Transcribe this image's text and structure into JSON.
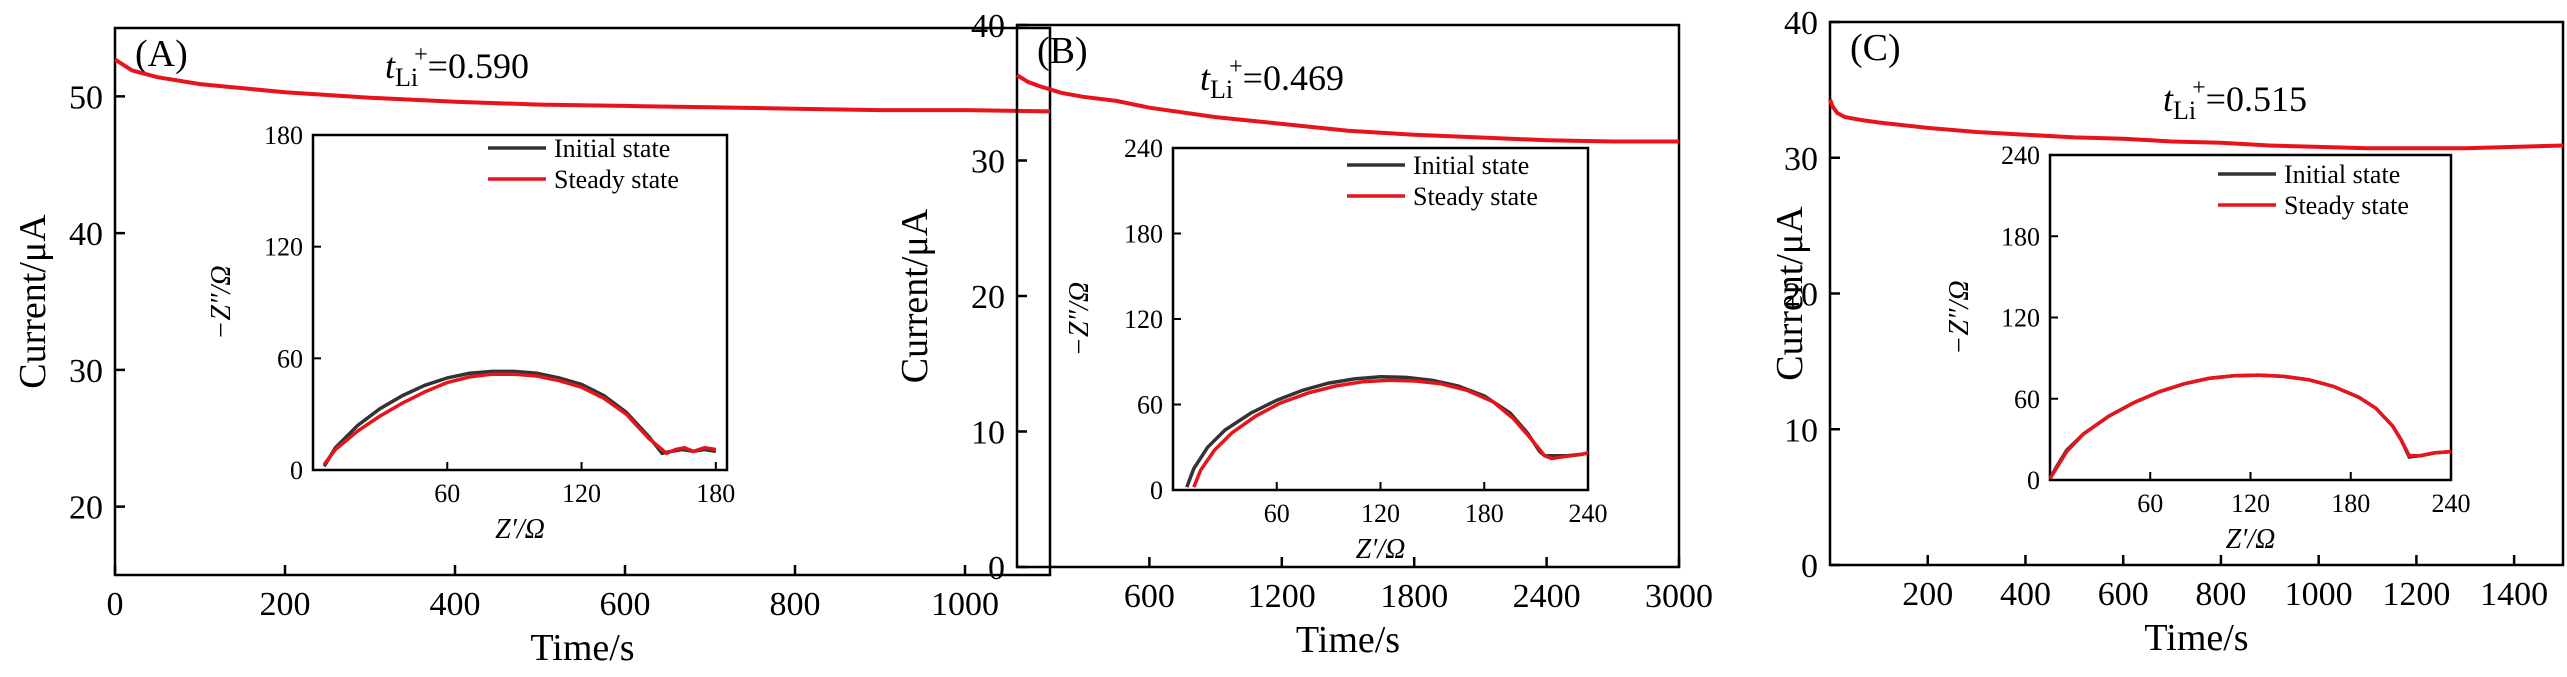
{
  "colors": {
    "initial": "#333333",
    "steady": "#e8141b",
    "axis": "#000000"
  },
  "chart_data": [
    {
      "type": "line",
      "panel_label": "(A)",
      "xlabel": "Time/s",
      "ylabel": "Current/μA",
      "xlim": [
        0,
        1100
      ],
      "ylim": [
        15,
        55
      ],
      "xticks": [
        0,
        200,
        400,
        600,
        800,
        1000
      ],
      "yticks": [
        20,
        30,
        40,
        50
      ],
      "annotation": {
        "t": "t",
        "sub": "Li",
        "sup": "+",
        "value": "=0.590"
      },
      "series": [
        {
          "x": [
            0,
            20,
            50,
            100,
            200,
            300,
            400,
            500,
            600,
            700,
            800,
            900,
            1000,
            1100
          ],
          "y": [
            52.7,
            51.9,
            51.4,
            50.9,
            50.3,
            49.9,
            49.6,
            49.4,
            49.3,
            49.2,
            49.1,
            49.0,
            49.0,
            48.9
          ]
        }
      ],
      "inset": {
        "xlabel": "Z′/Ω",
        "ylabel": "−Z″/Ω",
        "xlim": [
          0,
          185
        ],
        "ylim": [
          0,
          180
        ],
        "xticks": [
          60,
          120,
          180
        ],
        "yticks": [
          0,
          60,
          120,
          180
        ],
        "legend": [
          "Initial state",
          "Steady state"
        ],
        "series": [
          {
            "name": "Initial state",
            "x": [
              5,
              10,
              20,
              30,
              40,
              50,
              60,
              70,
              80,
              90,
              100,
              110,
              120,
              130,
              140,
              150,
              156,
              160,
              165,
              170,
              175,
              180
            ],
            "y": [
              2,
              12,
              24,
              33,
              40,
              45.5,
              49.5,
              52,
              53,
              53,
              52,
              49.5,
              46,
              40,
              31,
              18,
              9,
              10,
              11,
              10,
              11,
              10
            ]
          },
          {
            "name": "Steady state",
            "x": [
              5,
              10,
              20,
              30,
              40,
              50,
              60,
              70,
              80,
              90,
              100,
              110,
              120,
              130,
              140,
              150,
              158,
              162,
              166,
              170,
              175,
              180
            ],
            "y": [
              3,
              11,
              21,
              29,
              36,
              42,
              47,
              50,
              51.5,
              51.5,
              50.5,
              48,
              44.5,
              38.5,
              30,
              17,
              9,
              11,
              12,
              10,
              12,
              11
            ]
          }
        ]
      }
    },
    {
      "type": "line",
      "panel_label": "(B)",
      "xlabel": "Time/s",
      "ylabel": "Current/μA",
      "xlim": [
        0,
        3000
      ],
      "ylim": [
        0,
        40
      ],
      "xticks": [
        600,
        1200,
        1800,
        2400,
        3000
      ],
      "yticks": [
        0,
        10,
        20,
        30,
        40
      ],
      "annotation": {
        "t": "t",
        "sub": "Li",
        "sup": "+",
        "value": "=0.469"
      },
      "series": [
        {
          "x": [
            0,
            50,
            100,
            200,
            300,
            450,
            600,
            900,
            1200,
            1500,
            1800,
            2100,
            2400,
            2700,
            3000
          ],
          "y": [
            36.3,
            35.8,
            35.5,
            35.0,
            34.7,
            34.4,
            33.9,
            33.2,
            32.7,
            32.2,
            31.9,
            31.7,
            31.5,
            31.4,
            31.4
          ]
        }
      ],
      "inset": {
        "xlabel": "Z′/Ω",
        "ylabel": "−Z″/Ω",
        "xlim": [
          0,
          240
        ],
        "ylim": [
          0,
          240
        ],
        "xticks": [
          60,
          120,
          180,
          240
        ],
        "yticks": [
          0,
          60,
          120,
          180,
          240
        ],
        "legend": [
          "Initial state",
          "Steady state"
        ],
        "series": [
          {
            "name": "Initial state",
            "x": [
              8,
              12,
              20,
              30,
              45,
              60,
              75,
              90,
              105,
              120,
              135,
              150,
              165,
              180,
              195,
              205,
              212,
              215,
              220,
              228,
              236,
              240
            ],
            "y": [
              2,
              15,
              30,
              42,
              54,
              63,
              70,
              75,
              78,
              79.5,
              79,
              77,
              73,
              66,
              54,
              40,
              27,
              24,
              24,
              24,
              25,
              26
            ]
          },
          {
            "name": "Steady state",
            "x": [
              12,
              16,
              24,
              34,
              48,
              62,
              78,
              94,
              110,
              125,
              140,
              155,
              170,
              185,
              197,
              207,
              215,
              219,
              224,
              230,
              236,
              240
            ],
            "y": [
              2,
              14,
              28,
              40,
              52,
              61,
              68,
              73,
              76,
              77,
              76.5,
              74.5,
              70,
              62,
              50,
              36,
              24,
              22,
              23,
              24,
              25,
              26
            ]
          }
        ]
      }
    },
    {
      "type": "line",
      "panel_label": "(C)",
      "xlabel": "Time/s",
      "ylabel": "Current/μA",
      "xlim": [
        0,
        1500
      ],
      "ylim": [
        0,
        40
      ],
      "xticks": [
        200,
        400,
        600,
        800,
        1000,
        1200,
        1400
      ],
      "ytick_labels_note": "",
      "yticks": [
        0,
        10,
        20,
        30,
        40
      ],
      "annotation": {
        "t": "t",
        "sub": "Li",
        "sup": "+",
        "value": "=0.515"
      },
      "series": [
        {
          "x": [
            0,
            5,
            15,
            30,
            60,
            100,
            200,
            300,
            400,
            500,
            600,
            700,
            800,
            900,
            1000,
            1100,
            1200,
            1300,
            1400,
            1500
          ],
          "y": [
            34.3,
            33.8,
            33.3,
            33.0,
            32.8,
            32.6,
            32.2,
            31.9,
            31.7,
            31.5,
            31.4,
            31.2,
            31.1,
            30.9,
            30.8,
            30.7,
            30.7,
            30.7,
            30.8,
            30.9
          ]
        }
      ],
      "inset": {
        "xlabel": "Z′/Ω",
        "ylabel": "−Z″/Ω",
        "xlim": [
          0,
          240
        ],
        "ylim": [
          0,
          240
        ],
        "xticks": [
          60,
          120,
          180,
          240
        ],
        "yticks": [
          0,
          60,
          120,
          180,
          240
        ],
        "legend": [
          "Initial state",
          "Steady state"
        ],
        "series": [
          {
            "name": "Initial state",
            "x": [
              0,
              4,
              10,
              20,
              35,
              50,
              65,
              80,
              95,
              110,
              125,
              140,
              155,
              170,
              185,
              195,
              205,
              210,
              215,
              222,
              230,
              240
            ],
            "y": [
              1,
              10,
              22,
              34,
              47,
              57,
              65,
              71,
              75,
              77,
              77.5,
              76.5,
              74,
              69,
              61,
              53,
              40,
              30,
              17,
              18,
              20,
              21
            ]
          },
          {
            "name": "Steady state",
            "x": [
              0,
              4,
              10,
              20,
              35,
              50,
              65,
              80,
              95,
              110,
              125,
              140,
              155,
              170,
              185,
              195,
              205,
              210,
              215,
              222,
              230,
              240
            ],
            "y": [
              1,
              9,
              21,
              34,
              47,
              57,
              65,
              71,
              75,
              77,
              77.5,
              76.5,
              74,
              69,
              61,
              53,
              40,
              30,
              18,
              18,
              20,
              21
            ]
          }
        ]
      }
    }
  ]
}
